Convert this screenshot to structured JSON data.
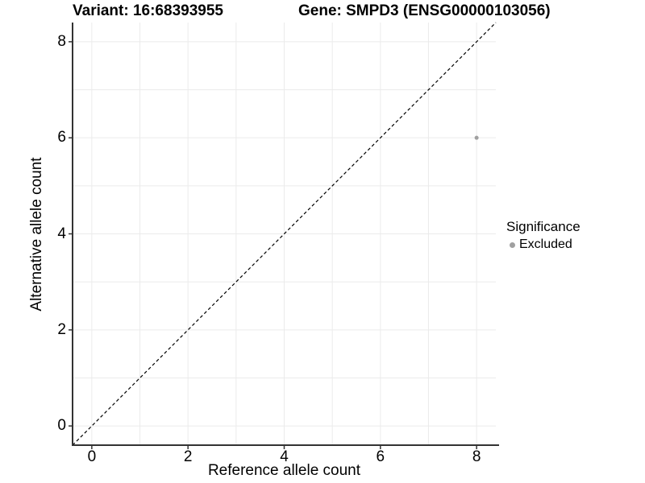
{
  "header": {
    "variant_title": "Variant: 16:68393955",
    "gene_title": "Gene: SMPD3 (ENSG00000103056)"
  },
  "chart_data": {
    "type": "scatter",
    "title": "Variant: 16:68393955          Gene: SMPD3 (ENSG00000103056)",
    "xlabel": "Reference allele count",
    "ylabel": "Alternative allele count",
    "xlim": [
      -0.4,
      8.4
    ],
    "ylim": [
      -0.4,
      8.4
    ],
    "x_ticks": [
      0,
      2,
      4,
      6,
      8
    ],
    "y_ticks": [
      0,
      2,
      4,
      6,
      8
    ],
    "grid": "on",
    "gridline_values": [
      0,
      1,
      2,
      3,
      4,
      5,
      6,
      7,
      8
    ],
    "reference_line": {
      "type": "identity y=x",
      "style": "dashed",
      "color": "#000000"
    },
    "series": [
      {
        "name": "Excluded",
        "color": "#a0a0a0",
        "points": [
          {
            "x": 8,
            "y": 6
          }
        ]
      }
    ],
    "legend": {
      "title": "Significance",
      "position": "right",
      "items": [
        {
          "label": "Excluded",
          "color": "#a0a0a0"
        }
      ]
    },
    "colors": {
      "grid": "#ebebeb",
      "axis_line": "#333333",
      "tick_mark": "#333333",
      "text": "#000000",
      "background": "#ffffff"
    }
  }
}
